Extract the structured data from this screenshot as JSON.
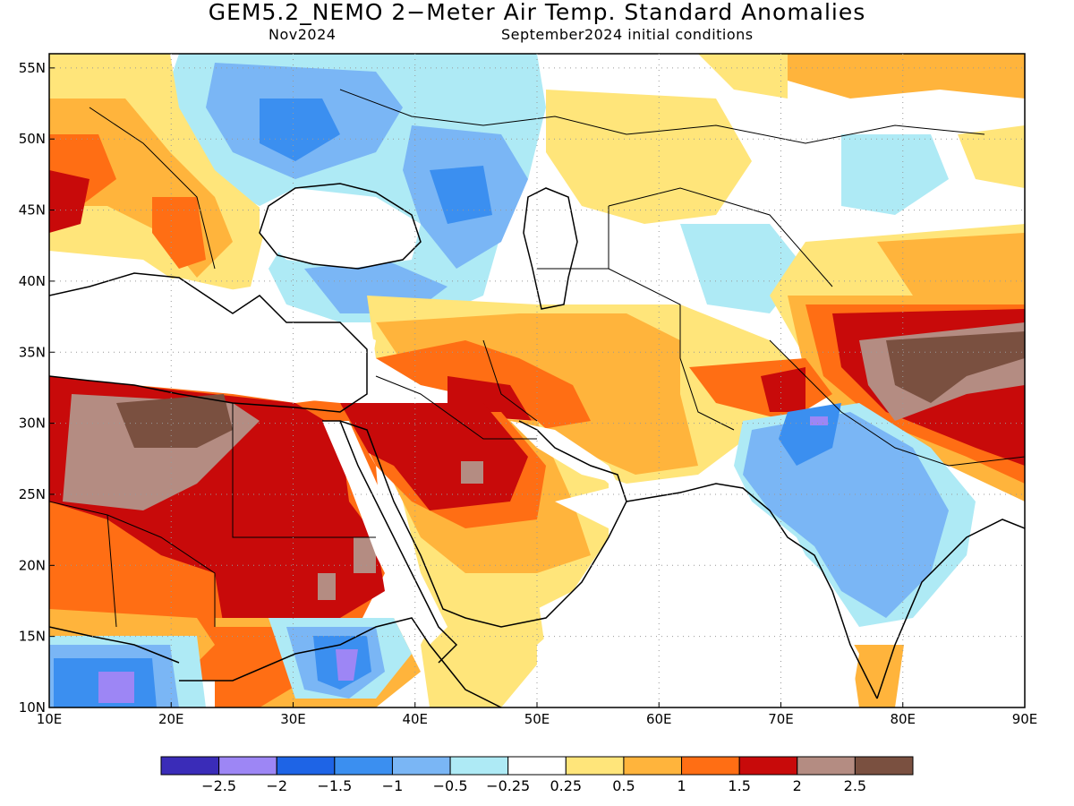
{
  "title": "GEM5.2_NEMO 2−Meter Air Temp. Standard Anomalies",
  "subtitle_left": "Nov2024",
  "subtitle_right": "September2024 initial conditions",
  "map": {
    "lon_range": [
      10,
      90
    ],
    "lat_range": [
      10,
      56
    ],
    "lat_ticks": [
      "10N",
      "15N",
      "20N",
      "25N",
      "30N",
      "35N",
      "40N",
      "45N",
      "50N",
      "55N"
    ],
    "lon_ticks": [
      "10E",
      "20E",
      "30E",
      "40E",
      "50E",
      "60E",
      "70E",
      "80E",
      "90E"
    ],
    "grid": "dotted"
  },
  "colorbar": {
    "colors": [
      "#3a2cb8",
      "#9d86f5",
      "#1e64e6",
      "#3b8ff0",
      "#7ab6f5",
      "#aeeaf5",
      "#ffffff",
      "#ffe57a",
      "#ffb43c",
      "#ff6e14",
      "#c80a0a",
      "#b48c82",
      "#7a5040"
    ],
    "labels": [
      "−2.5",
      "−2",
      "−1.5",
      "−1",
      "−0.5",
      "−0.25",
      "0.25",
      "0.5",
      "1",
      "1.5",
      "2",
      "2.5"
    ]
  }
}
